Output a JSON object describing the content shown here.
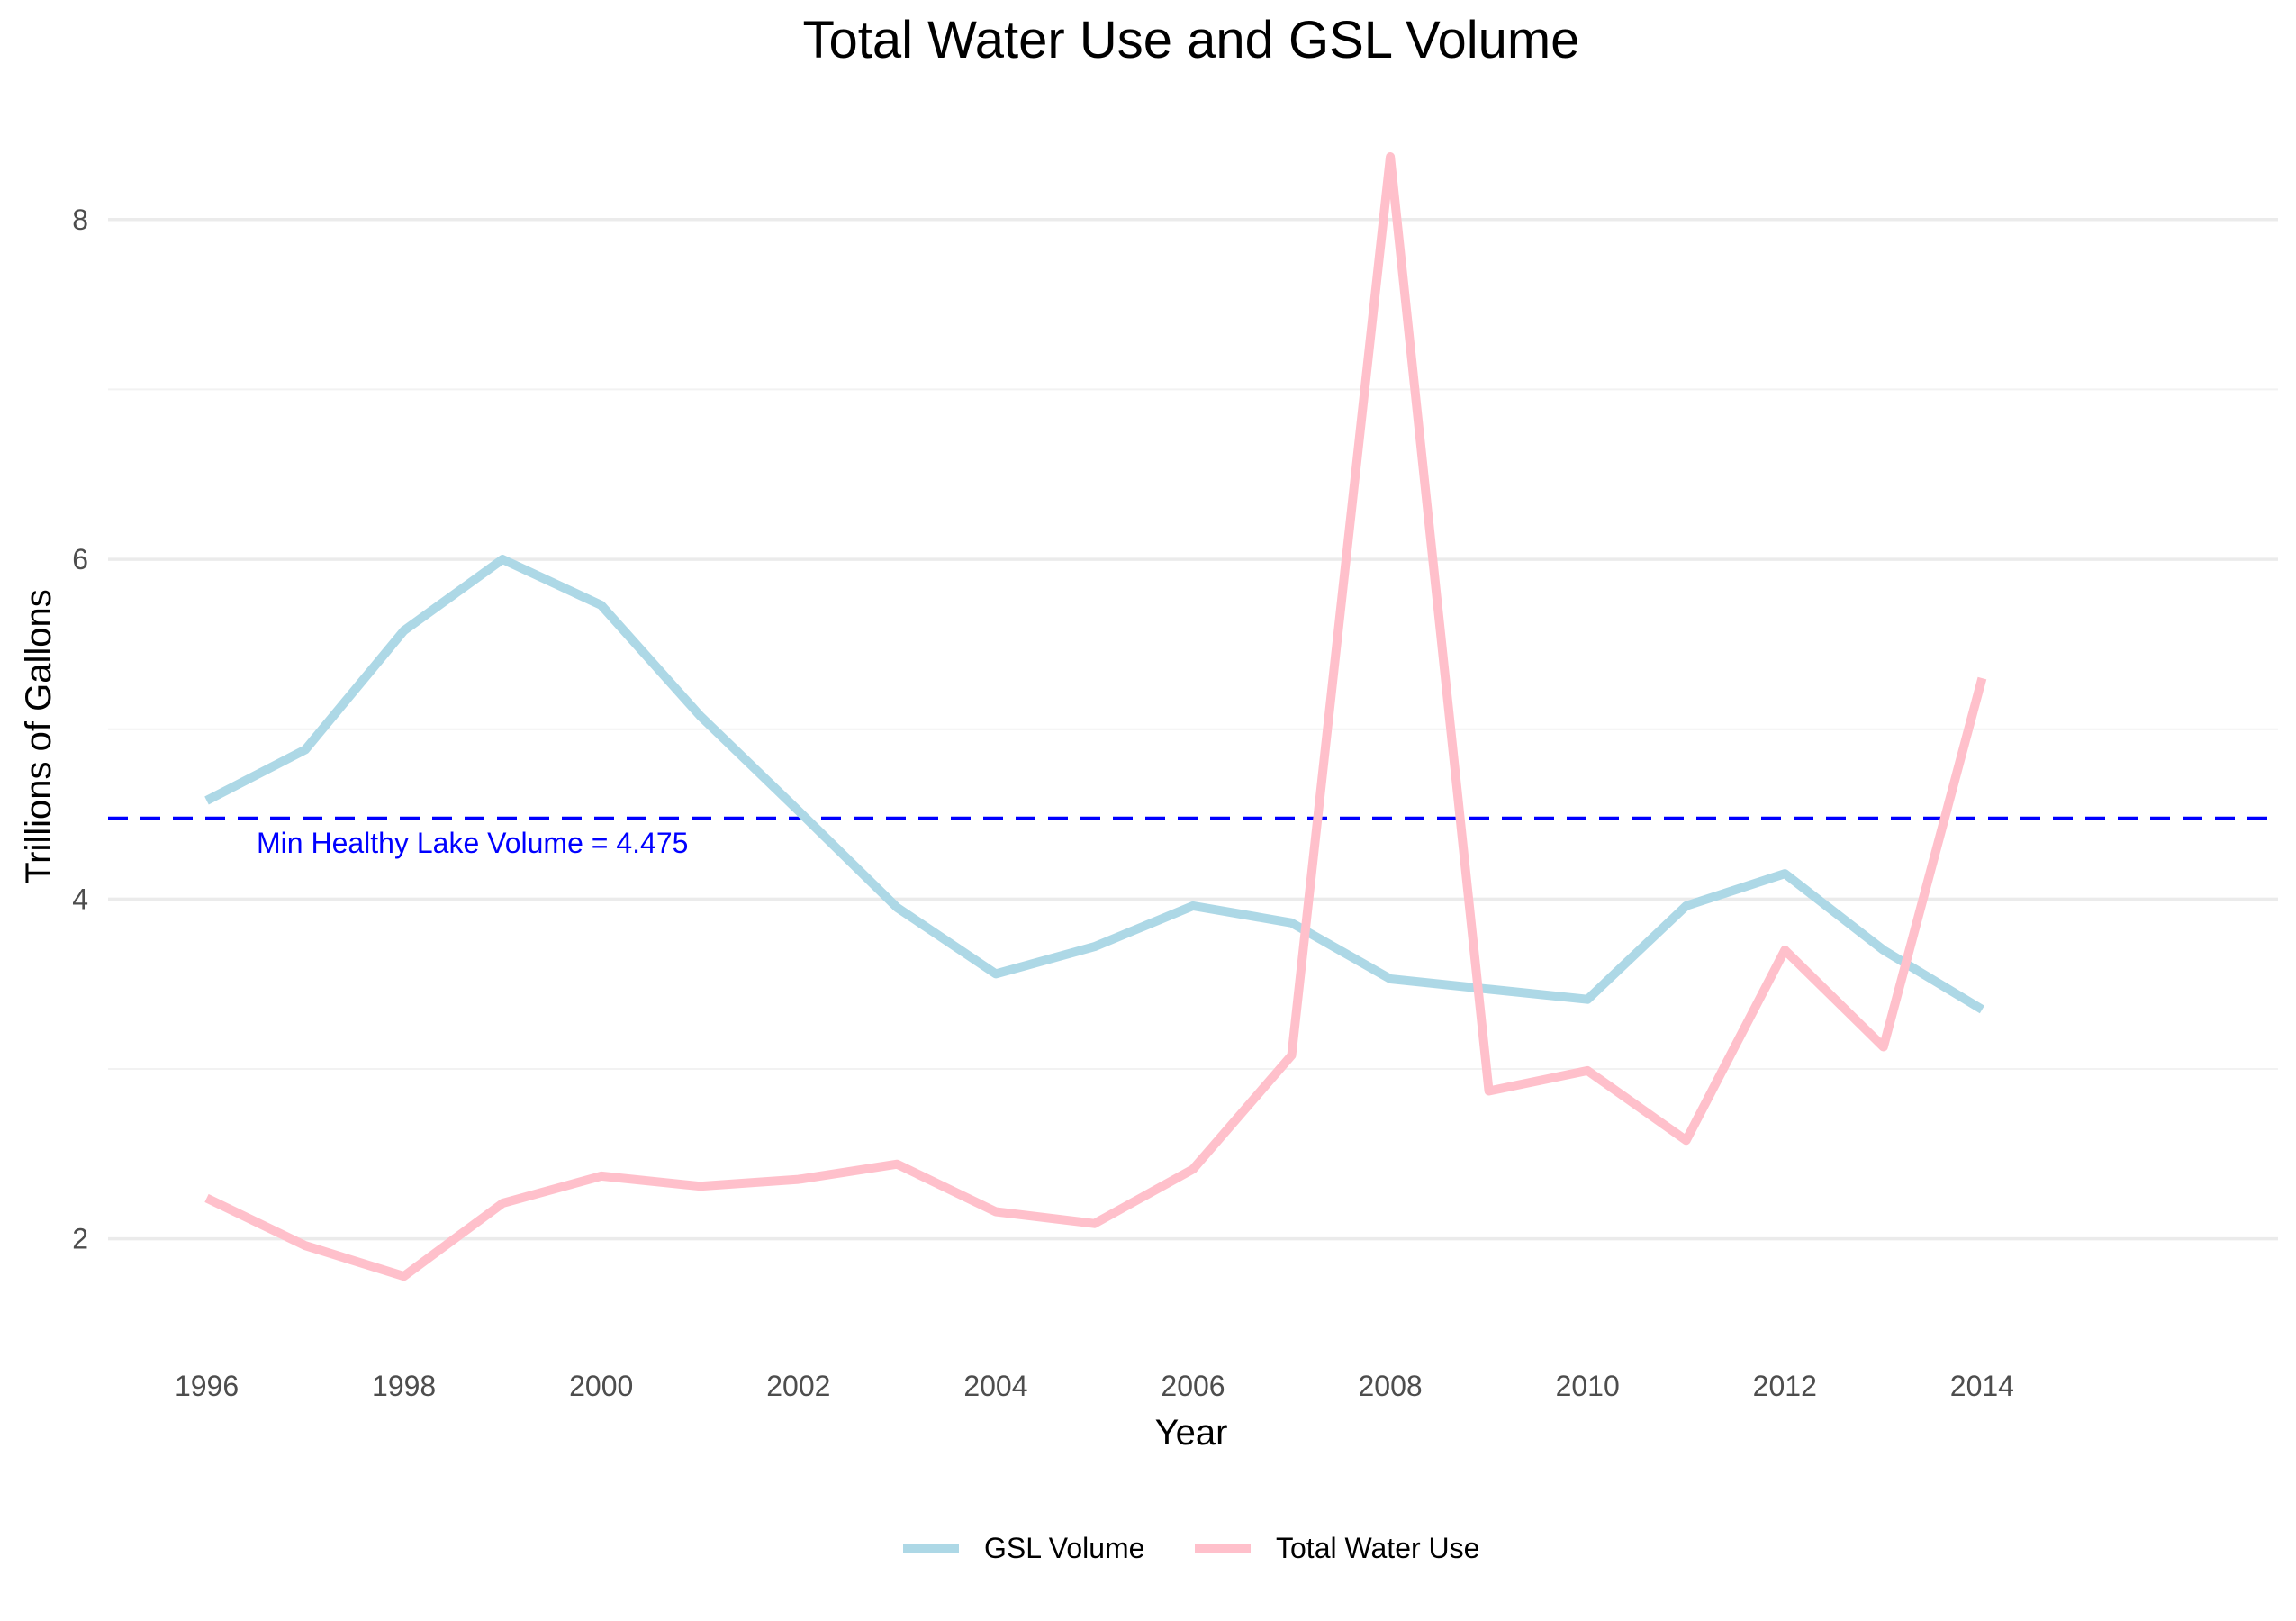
{
  "chart_data": {
    "type": "line",
    "title": "Total Water Use and GSL Volume",
    "xlabel": "Year",
    "ylabel": "Trillions of Gallons",
    "x": [
      1996,
      1997,
      1998,
      1999,
      2000,
      2001,
      2002,
      2003,
      2004,
      2005,
      2006,
      2007,
      2008,
      2009,
      2010,
      2011,
      2012,
      2013,
      2014
    ],
    "x_ticks": [
      1996,
      1998,
      2000,
      2002,
      2004,
      2006,
      2008,
      2010,
      2012,
      2014
    ],
    "y_ticks": [
      2,
      4,
      6,
      8
    ],
    "xlim": [
      1995.0,
      2017.0
    ],
    "ylim": [
      1.5,
      8.55
    ],
    "grid": true,
    "legend_position": "bottom",
    "series": [
      {
        "name": "GSL Volume",
        "color": "#add8e6",
        "values": [
          4.58,
          4.88,
          5.58,
          6.0,
          5.73,
          5.08,
          4.52,
          3.95,
          3.56,
          3.72,
          3.96,
          3.86,
          3.53,
          3.47,
          3.41,
          3.96,
          4.15,
          3.7,
          3.35
        ]
      },
      {
        "name": "Total Water Use",
        "color": "#ffc0cb",
        "values": [
          2.24,
          1.96,
          1.78,
          2.21,
          2.37,
          2.31,
          2.35,
          2.44,
          2.16,
          2.09,
          2.41,
          3.08,
          8.37,
          2.87,
          2.99,
          2.58,
          3.7,
          3.13,
          5.3
        ]
      }
    ],
    "reference_line": {
      "value": 4.475,
      "color": "#0000ff",
      "label": "Min Healthy Lake Volume = 4.475"
    }
  }
}
